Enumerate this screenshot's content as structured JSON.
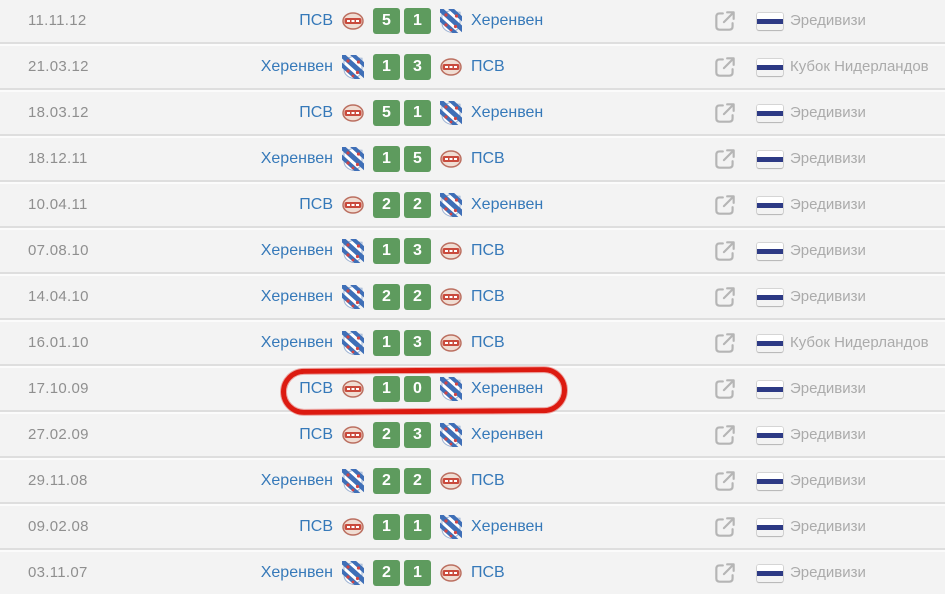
{
  "table_description": "head-to-head match history list",
  "teams": {
    "psv": {
      "name": "ПСВ",
      "logo_icon": "psv-club-logo"
    },
    "heerenveen": {
      "name": "Херенвен",
      "logo_icon": "heerenveen-club-logo"
    }
  },
  "icons": {
    "external_link": "external-link-icon",
    "flag": "netherlands-flag-icon"
  },
  "colors": {
    "row_bg": "#f3f3f3",
    "divider_dark": "#dedede",
    "divider_light": "#fbfbfb",
    "date_text": "#8f8f8f",
    "team_link": "#3679b9",
    "score_bg": "#5e9b5e",
    "score_text": "#ffffff",
    "league_text": "#ababab",
    "icon_gray": "#b5b5b5",
    "flag_red": "#e25f62",
    "flag_white": "#ffffff",
    "flag_blue": "#2d3a85",
    "highlight_red": "#dc1a10"
  },
  "rows": [
    {
      "date": "11.11.12",
      "home": "psv",
      "away": "heerenveen",
      "home_score": "5",
      "away_score": "1",
      "league": "Эредивизи",
      "highlighted": false
    },
    {
      "date": "21.03.12",
      "home": "heerenveen",
      "away": "psv",
      "home_score": "1",
      "away_score": "3",
      "league": "Кубок Нидерландов",
      "highlighted": false
    },
    {
      "date": "18.03.12",
      "home": "psv",
      "away": "heerenveen",
      "home_score": "5",
      "away_score": "1",
      "league": "Эредивизи",
      "highlighted": false
    },
    {
      "date": "18.12.11",
      "home": "heerenveen",
      "away": "psv",
      "home_score": "1",
      "away_score": "5",
      "league": "Эредивизи",
      "highlighted": false
    },
    {
      "date": "10.04.11",
      "home": "psv",
      "away": "heerenveen",
      "home_score": "2",
      "away_score": "2",
      "league": "Эредивизи",
      "highlighted": false
    },
    {
      "date": "07.08.10",
      "home": "heerenveen",
      "away": "psv",
      "home_score": "1",
      "away_score": "3",
      "league": "Эредивизи",
      "highlighted": false
    },
    {
      "date": "14.04.10",
      "home": "heerenveen",
      "away": "psv",
      "home_score": "2",
      "away_score": "2",
      "league": "Эредивизи",
      "highlighted": false
    },
    {
      "date": "16.01.10",
      "home": "heerenveen",
      "away": "psv",
      "home_score": "1",
      "away_score": "3",
      "league": "Кубок Нидерландов",
      "highlighted": false
    },
    {
      "date": "17.10.09",
      "home": "psv",
      "away": "heerenveen",
      "home_score": "1",
      "away_score": "0",
      "league": "Эредивизи",
      "highlighted": true
    },
    {
      "date": "27.02.09",
      "home": "psv",
      "away": "heerenveen",
      "home_score": "2",
      "away_score": "3",
      "league": "Эредивизи",
      "highlighted": false
    },
    {
      "date": "29.11.08",
      "home": "heerenveen",
      "away": "psv",
      "home_score": "2",
      "away_score": "2",
      "league": "Эредивизи",
      "highlighted": false
    },
    {
      "date": "09.02.08",
      "home": "psv",
      "away": "heerenveen",
      "home_score": "1",
      "away_score": "1",
      "league": "Эредивизи",
      "highlighted": false
    },
    {
      "date": "03.11.07",
      "home": "heerenveen",
      "away": "psv",
      "home_score": "2",
      "away_score": "1",
      "league": "Эредивизи",
      "highlighted": false
    }
  ]
}
